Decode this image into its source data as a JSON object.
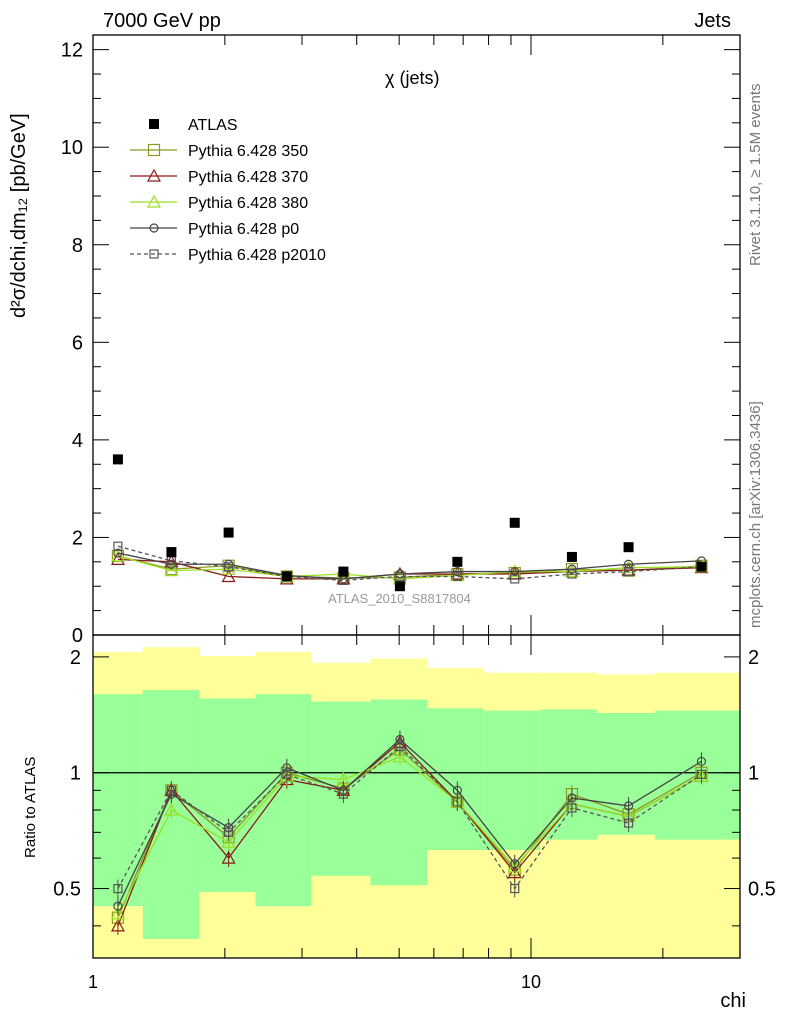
{
  "header": {
    "left": "7000 GeV pp",
    "right": "Jets"
  },
  "side_labels": {
    "rivet": "Rivet 3.1.10, ≥ 1.5M events",
    "mcplots": "mcplots.cern.ch [arXiv:1306.3436]"
  },
  "watermark": "ATLAS_2010_S8817804",
  "colors": {
    "atlas": "#000000",
    "p350": "#8c9a1e",
    "p370": "#8b1a1a",
    "p380": "#99e022",
    "p0": "#444444",
    "p2010": "#555555",
    "band_yellow": "#ffff99",
    "band_green": "#99ff99"
  },
  "chart_data": [
    {
      "type": "scatter",
      "panel": "main",
      "title": "χ (jets)",
      "ylabel": "d²σ/dchi,dm₁₂ [pb/GeV]",
      "xlabel": "",
      "xscale": "log",
      "xlim": [
        1,
        30
      ],
      "ylim": [
        0,
        12.3
      ],
      "yticks": [
        "0",
        "2",
        "4",
        "6",
        "8",
        "10",
        "12"
      ],
      "legend_position": "top-left",
      "x": [
        1.14,
        1.51,
        2.04,
        2.77,
        3.73,
        5.02,
        6.79,
        9.18,
        12.4,
        16.7,
        24.5
      ],
      "series": [
        {
          "name": "ATLAS",
          "marker": "filled-square",
          "values": [
            3.6,
            1.7,
            2.1,
            1.2,
            1.3,
            1.0,
            1.5,
            2.3,
            1.6,
            1.8,
            1.4
          ]
        },
        {
          "name": "Pythia 6.428 350",
          "marker": "open-square",
          "values": [
            1.62,
            1.35,
            1.42,
            1.2,
            1.17,
            1.18,
            1.25,
            1.27,
            1.35,
            1.32,
            1.42
          ]
        },
        {
          "name": "Pythia 6.428 370",
          "marker": "open-triangle",
          "values": [
            1.55,
            1.5,
            1.2,
            1.15,
            1.15,
            1.25,
            1.25,
            1.25,
            1.3,
            1.33,
            1.38
          ]
        },
        {
          "name": "Pythia 6.428 380",
          "marker": "open-triangle",
          "values": [
            1.62,
            1.32,
            1.35,
            1.2,
            1.25,
            1.15,
            1.22,
            1.3,
            1.3,
            1.38,
            1.4
          ]
        },
        {
          "name": "Pythia 6.428 p0",
          "marker": "open-circle",
          "values": [
            1.68,
            1.45,
            1.45,
            1.22,
            1.15,
            1.25,
            1.3,
            1.3,
            1.35,
            1.45,
            1.52
          ]
        },
        {
          "name": "Pythia 6.428 p2010",
          "marker": "open-square-dashed",
          "values": [
            1.82,
            1.52,
            1.4,
            1.2,
            1.12,
            1.2,
            1.2,
            1.15,
            1.25,
            1.3,
            1.4
          ]
        }
      ]
    },
    {
      "type": "line",
      "panel": "ratio",
      "ylabel": "Ratio to ATLAS",
      "xlabel": "chi",
      "xscale": "log",
      "xlim": [
        1,
        30
      ],
      "ylim": [
        0.33,
        2.28
      ],
      "yticks": [
        "0.5",
        "1",
        "2"
      ],
      "xticks": [
        "1",
        "10"
      ],
      "bin_edges": [
        1,
        1.3,
        1.75,
        2.35,
        3.15,
        4.3,
        5.8,
        7.8,
        10.5,
        14.2,
        19.2,
        30
      ],
      "band_yellow": {
        "lo": [
          0.33,
          0.33,
          0.33,
          0.33,
          0.33,
          0.33,
          0.33,
          0.33,
          0.33,
          0.33,
          0.33
        ],
        "hi": [
          2.06,
          2.12,
          2.01,
          2.06,
          1.93,
          1.98,
          1.87,
          1.82,
          1.82,
          1.8,
          1.82
        ]
      },
      "band_green": {
        "lo": [
          0.45,
          0.37,
          0.49,
          0.45,
          0.54,
          0.51,
          0.63,
          0.63,
          0.67,
          0.69,
          0.67
        ],
        "hi": [
          1.6,
          1.64,
          1.56,
          1.6,
          1.53,
          1.55,
          1.47,
          1.45,
          1.46,
          1.43,
          1.45
        ]
      },
      "x": [
        1.14,
        1.51,
        2.04,
        2.77,
        3.73,
        5.02,
        6.79,
        9.18,
        12.4,
        16.7,
        24.5
      ],
      "series": [
        {
          "name": "Pythia 6.428 350",
          "values": [
            0.42,
            0.9,
            0.68,
            1.0,
            0.91,
            1.15,
            0.84,
            0.56,
            0.88,
            0.78,
            1.0
          ]
        },
        {
          "name": "Pythia 6.428 370",
          "values": [
            0.4,
            0.9,
            0.6,
            0.96,
            0.9,
            1.2,
            0.84,
            0.55,
            0.83,
            0.77,
            0.98
          ]
        },
        {
          "name": "Pythia 6.428 380",
          "values": [
            0.43,
            0.8,
            0.66,
            0.98,
            0.96,
            1.1,
            0.84,
            0.57,
            0.83,
            0.77,
            0.98
          ]
        },
        {
          "name": "Pythia 6.428 p0",
          "values": [
            0.45,
            0.88,
            0.72,
            1.03,
            0.9,
            1.22,
            0.9,
            0.58,
            0.86,
            0.82,
            1.07
          ]
        },
        {
          "name": "Pythia 6.428 p2010",
          "values": [
            0.5,
            0.9,
            0.7,
            0.99,
            0.88,
            1.17,
            0.84,
            0.5,
            0.81,
            0.74,
            0.99
          ]
        }
      ]
    }
  ]
}
